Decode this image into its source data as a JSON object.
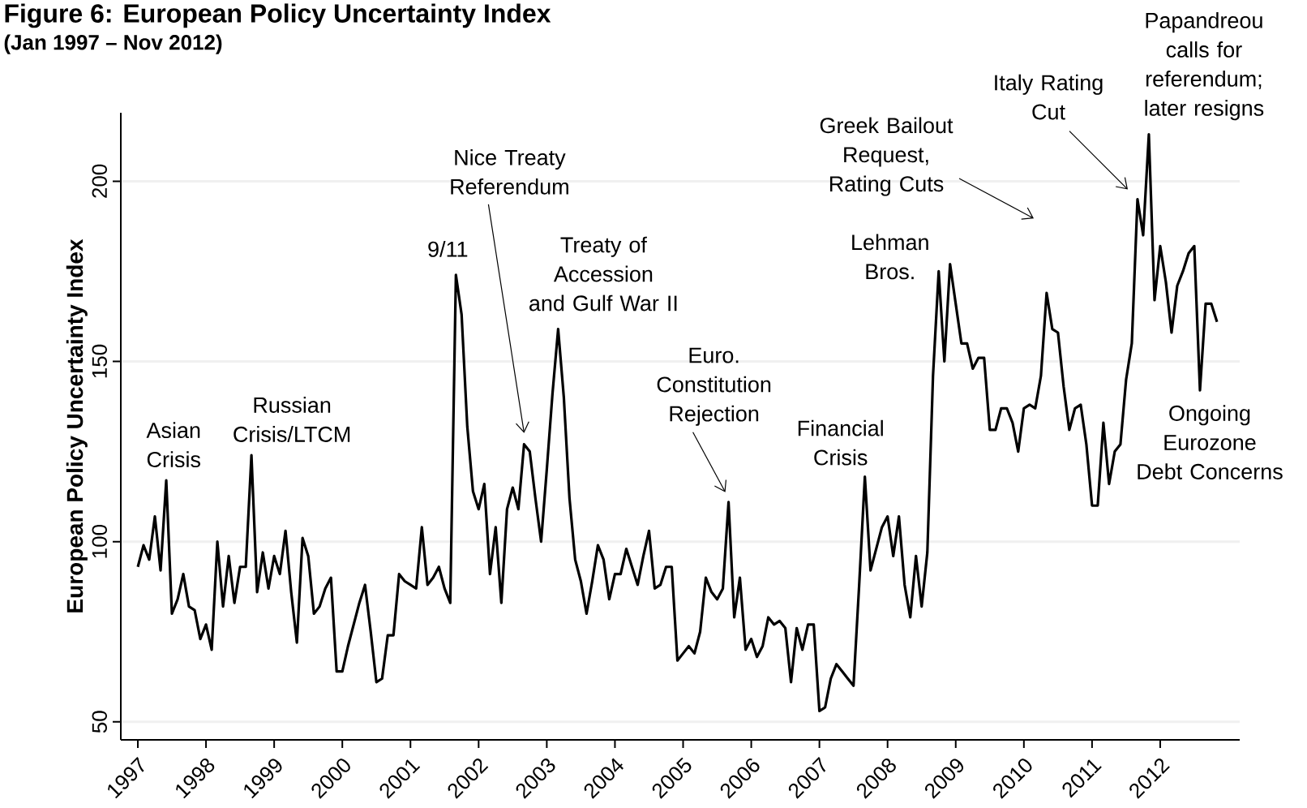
{
  "chart_data": {
    "type": "line",
    "title": "Figure 6: European Policy Uncertainty Index",
    "subtitle": "(Jan 1997 – Nov 2012)",
    "ylabel": "European Policy Uncertainty Index",
    "x": [
      "1997-01",
      "1997-02",
      "1997-03",
      "1997-04",
      "1997-05",
      "1997-06",
      "1997-07",
      "1997-08",
      "1997-09",
      "1997-10",
      "1997-11",
      "1997-12",
      "1998-01",
      "1998-02",
      "1998-03",
      "1998-04",
      "1998-05",
      "1998-06",
      "1998-07",
      "1998-08",
      "1998-09",
      "1998-10",
      "1998-11",
      "1998-12",
      "1999-01",
      "1999-02",
      "1999-03",
      "1999-04",
      "1999-05",
      "1999-06",
      "1999-07",
      "1999-08",
      "1999-09",
      "1999-10",
      "1999-11",
      "1999-12",
      "2000-01",
      "2000-02",
      "2000-03",
      "2000-04",
      "2000-05",
      "2000-06",
      "2000-07",
      "2000-08",
      "2000-09",
      "2000-10",
      "2000-11",
      "2000-12",
      "2001-01",
      "2001-02",
      "2001-03",
      "2001-04",
      "2001-05",
      "2001-06",
      "2001-07",
      "2001-08",
      "2001-09",
      "2001-10",
      "2001-11",
      "2001-12",
      "2002-01",
      "2002-02",
      "2002-03",
      "2002-04",
      "2002-05",
      "2002-06",
      "2002-07",
      "2002-08",
      "2002-09",
      "2002-10",
      "2002-11",
      "2002-12",
      "2003-01",
      "2003-02",
      "2003-03",
      "2003-04",
      "2003-05",
      "2003-06",
      "2003-07",
      "2003-08",
      "2003-09",
      "2003-10",
      "2003-11",
      "2003-12",
      "2004-01",
      "2004-02",
      "2004-03",
      "2004-04",
      "2004-05",
      "2004-06",
      "2004-07",
      "2004-08",
      "2004-09",
      "2004-10",
      "2004-11",
      "2004-12",
      "2005-01",
      "2005-02",
      "2005-03",
      "2005-04",
      "2005-05",
      "2005-06",
      "2005-07",
      "2005-08",
      "2005-09",
      "2005-10",
      "2005-11",
      "2005-12",
      "2006-01",
      "2006-02",
      "2006-03",
      "2006-04",
      "2006-05",
      "2006-06",
      "2006-07",
      "2006-08",
      "2006-09",
      "2006-10",
      "2006-11",
      "2006-12",
      "2007-01",
      "2007-02",
      "2007-03",
      "2007-04",
      "2007-05",
      "2007-06",
      "2007-07",
      "2007-08",
      "2007-09",
      "2007-10",
      "2007-11",
      "2007-12",
      "2008-01",
      "2008-02",
      "2008-03",
      "2008-04",
      "2008-05",
      "2008-06",
      "2008-07",
      "2008-08",
      "2008-09",
      "2008-10",
      "2008-11",
      "2008-12",
      "2009-01",
      "2009-02",
      "2009-03",
      "2009-04",
      "2009-05",
      "2009-06",
      "2009-07",
      "2009-08",
      "2009-09",
      "2009-10",
      "2009-11",
      "2009-12",
      "2010-01",
      "2010-02",
      "2010-03",
      "2010-04",
      "2010-05",
      "2010-06",
      "2010-07",
      "2010-08",
      "2010-09",
      "2010-10",
      "2010-11",
      "2010-12",
      "2011-01",
      "2011-02",
      "2011-03",
      "2011-04",
      "2011-05",
      "2011-06",
      "2011-07",
      "2011-08",
      "2011-09",
      "2011-10",
      "2011-11",
      "2011-12",
      "2012-01",
      "2012-02",
      "2012-03",
      "2012-04",
      "2012-05",
      "2012-06",
      "2012-07",
      "2012-08",
      "2012-09",
      "2012-10",
      "2012-11"
    ],
    "series": [
      {
        "color": "#000000",
        "line_style": "solid",
        "values": [
          93,
          99,
          95,
          107,
          92,
          117,
          80,
          84,
          91,
          82,
          81,
          73,
          77,
          70,
          100,
          82,
          96,
          83,
          93,
          93,
          124,
          86,
          97,
          87,
          96,
          91,
          103,
          86,
          72,
          101,
          96,
          80,
          82,
          87,
          90,
          64,
          64,
          71,
          77,
          83,
          88,
          75,
          61,
          62,
          74,
          74,
          91,
          89,
          88,
          87,
          104,
          88,
          90,
          93,
          87,
          83,
          174,
          163,
          132,
          114,
          109,
          116,
          91,
          104,
          83,
          109,
          115,
          109,
          127,
          125,
          112,
          100,
          120,
          141,
          159,
          140,
          112,
          95,
          89,
          80,
          89,
          99,
          95,
          84,
          91,
          91,
          98,
          93,
          88,
          96,
          103,
          87,
          88,
          93,
          93,
          67,
          69,
          71,
          69,
          75,
          90,
          86,
          84,
          87,
          111,
          79,
          90,
          70,
          73,
          68,
          71,
          79,
          77,
          78,
          76,
          61,
          76,
          70,
          77,
          77,
          53,
          54,
          62,
          66,
          64,
          62,
          60,
          88,
          118,
          92,
          98,
          104,
          107,
          96,
          107,
          88,
          79,
          96,
          82,
          97,
          146,
          175,
          150,
          177,
          166,
          155,
          155,
          148,
          151,
          151,
          131,
          131,
          137,
          137,
          133,
          125,
          137,
          138,
          137,
          146,
          169,
          159,
          158,
          143,
          131,
          137,
          138,
          127,
          110,
          110,
          133,
          116,
          125,
          127,
          145,
          155,
          195,
          185,
          213,
          167,
          182,
          172,
          158,
          171,
          175,
          180,
          182,
          142,
          166,
          166,
          161
        ]
      }
    ],
    "xlim": [
      "1996-10",
      "2013-03"
    ],
    "xticks": [
      "1997",
      "1998",
      "1999",
      "2000",
      "2001",
      "2002",
      "2003",
      "2004",
      "2005",
      "2006",
      "2007",
      "2008",
      "2009",
      "2010",
      "2011",
      "2012"
    ],
    "ylim": [
      45,
      219
    ],
    "yticks": [
      50,
      100,
      150,
      200
    ],
    "grid": "y",
    "annotations": [
      {
        "text": "Asian Crisis",
        "x": "1997-06",
        "y": 117
      },
      {
        "text": "Russian Crisis/LTCM",
        "x": "1998-09",
        "y": 124
      },
      {
        "text": "9/11",
        "x": "2001-09",
        "y": 174
      },
      "Nice Treaty Referendum",
      {
        "text": "Treaty of Accession and Gulf War II",
        "x": "2003-03",
        "y": 159
      },
      "Euro. Constitution Rejection",
      {
        "text": "Financial Crisis",
        "x": "2007-09",
        "y": 118
      },
      {
        "text": "Lehman Bros.",
        "x": "2008-10",
        "y": 175
      },
      "Greek Bailout Request, Rating Cuts",
      "Italy Rating Cut",
      {
        "text": "Papandreou calls for referendum; later resigns",
        "x": "2011-11",
        "y": 213
      },
      {
        "text": "Ongoing Eurozone Debt Concerns",
        "x": "2012-08",
        "y": 142
      }
    ]
  }
}
